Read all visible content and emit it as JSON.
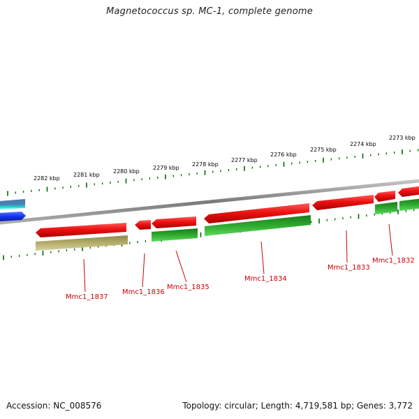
{
  "title": "Magnetococcus sp. MC-1, complete genome",
  "footer": {
    "accession": "Accession: NC_008576",
    "topology": "Topology: circular; Length: 4,719,581 bp; Genes: 3,772"
  },
  "colors": {
    "forward_strand": "#ee1111",
    "reverse_strand": "#22aa22",
    "pseudo_feature": "#b5ad6a",
    "backbone": "#888888",
    "tick": "#006600",
    "label": "#cc0000",
    "left_blue": "#1133ee",
    "left_cyan": "#22cccc"
  },
  "scale": {
    "unit": "kbp",
    "labels": [
      "2282 kbp",
      "2281 kbp",
      "2280 kbp",
      "2279 kbp",
      "2278 kbp",
      "2277 kbp",
      "2276 kbp",
      "2275 kbp",
      "2274 kbp",
      "2273 kbp"
    ]
  },
  "genes": [
    {
      "name": "Mmc1_1837",
      "strand": "reverse",
      "type": "pseudo"
    },
    {
      "name": "Mmc1_1836",
      "strand": "forward"
    },
    {
      "name": "Mmc1_1835",
      "strand": "reverse"
    },
    {
      "name": "Mmc1_1834",
      "strand": "reverse"
    },
    {
      "name": "Mmc1_1833",
      "strand": "forward"
    },
    {
      "name": "Mmc1_1832",
      "strand": "reverse"
    }
  ]
}
